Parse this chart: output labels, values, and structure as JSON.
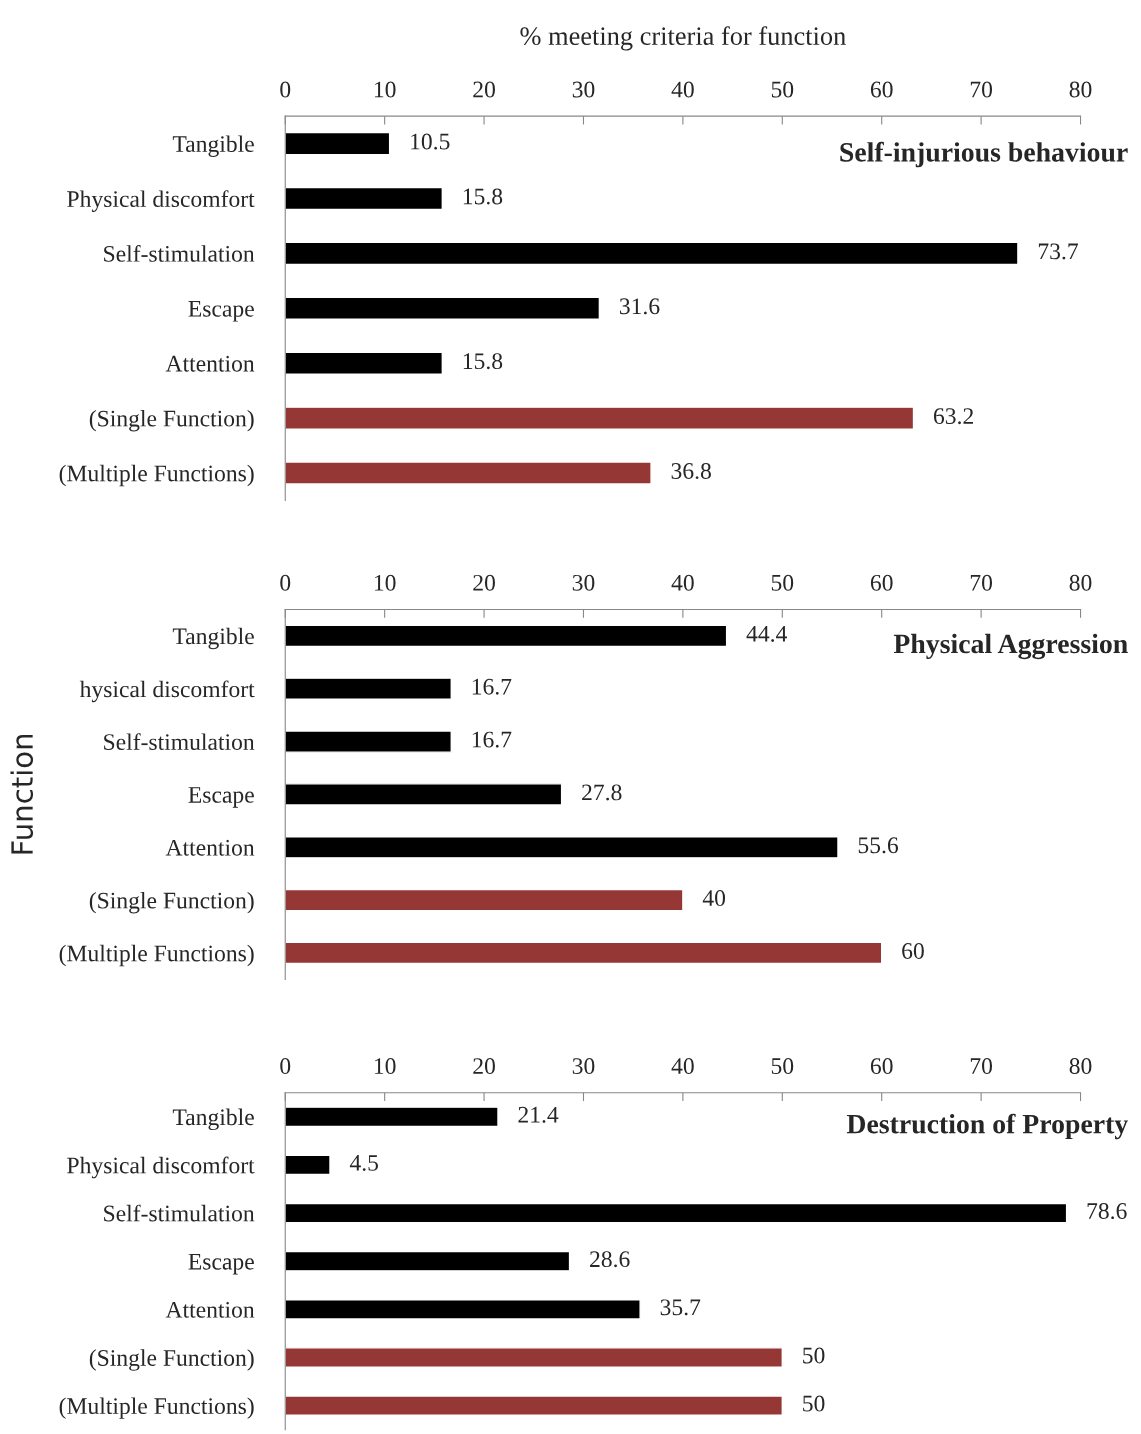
{
  "chart_data": [
    {
      "type": "bar",
      "orientation": "horizontal",
      "title": "Self-injurious behaviour",
      "xlabel": "% meeting criteria for function",
      "categories": [
        "Tangible",
        "Physical discomfort",
        "Self-stimulation",
        "Escape",
        "Attention",
        "(Single Function)",
        "(Multiple Functions)"
      ],
      "values": [
        10.5,
        15.8,
        73.7,
        31.6,
        15.8,
        63.2,
        36.8
      ],
      "colors": [
        "#000000",
        "#000000",
        "#000000",
        "#000000",
        "#000000",
        "#953735",
        "#953735"
      ],
      "xlim": [
        0,
        80
      ],
      "xticks": [
        0,
        10,
        20,
        30,
        40,
        50,
        60,
        70,
        80
      ],
      "data_labels": true,
      "grid": false,
      "legend": false
    },
    {
      "type": "bar",
      "orientation": "horizontal",
      "title": "Physical Aggression",
      "ylabel": "Function",
      "categories": [
        "Tangible",
        "hysical discomfort",
        "Self-stimulation",
        "Escape",
        "Attention",
        "(Single Function)",
        "(Multiple Functions)"
      ],
      "values": [
        44.4,
        16.7,
        16.7,
        27.8,
        55.6,
        40,
        60
      ],
      "colors": [
        "#000000",
        "#000000",
        "#000000",
        "#000000",
        "#000000",
        "#953735",
        "#953735"
      ],
      "xlim": [
        0,
        80
      ],
      "xticks": [
        0,
        10,
        20,
        30,
        40,
        50,
        60,
        70,
        80
      ],
      "data_labels": true,
      "grid": false,
      "legend": false
    },
    {
      "type": "bar",
      "orientation": "horizontal",
      "title": "Destruction of Property",
      "categories": [
        "Tangible",
        "Physical discomfort",
        "Self-stimulation",
        "Escape",
        "Attention",
        "(Single Function)",
        "(Multiple Functions)"
      ],
      "values": [
        21.4,
        4.5,
        78.6,
        28.6,
        35.7,
        50,
        50
      ],
      "colors": [
        "#000000",
        "#000000",
        "#000000",
        "#000000",
        "#000000",
        "#953735",
        "#953735"
      ],
      "xlim": [
        0,
        80
      ],
      "xticks": [
        0,
        10,
        20,
        30,
        40,
        50,
        60,
        70,
        80
      ],
      "data_labels": true,
      "grid": false,
      "legend": false
    }
  ]
}
